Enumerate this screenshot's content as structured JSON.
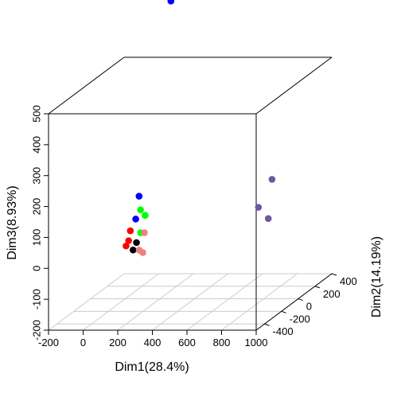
{
  "chart_data": {
    "type": "scatter3d",
    "title": "",
    "xlabel": "Dim1(28.4%)",
    "ylabel": "Dim2(14.19%)",
    "zlabel": "Dim3(8.93%)",
    "xlim": [
      -200,
      1000
    ],
    "ylim": [
      -500,
      400
    ],
    "zlim": [
      -200,
      500
    ],
    "x_ticks": [
      "-200",
      "0",
      "200",
      "400",
      "600",
      "800",
      "1000"
    ],
    "y_ticks": [
      "-400",
      "-200",
      "0",
      "200",
      "400"
    ],
    "z_ticks": [
      "-200",
      "-100",
      "0",
      "100",
      "200",
      "300",
      "400",
      "500"
    ],
    "grid": "x-y floor",
    "legend": "none",
    "groups": [
      {
        "color": "#0000ff",
        "points": [
          [
            114,
            310,
            700
          ],
          [
            100,
            -40,
            140
          ],
          [
            66,
            -10,
            60
          ]
        ]
      },
      {
        "color": "#00ff00",
        "points": [
          [
            118,
            -60,
            100
          ],
          [
            140,
            -50,
            80
          ],
          [
            128,
            -80,
            30
          ]
        ]
      },
      {
        "color": "#f08080",
        "points": [
          [
            150,
            -80,
            30
          ],
          [
            135,
            -110,
            -20
          ],
          [
            175,
            -150,
            -20
          ]
        ]
      },
      {
        "color": "#ff0000",
        "points": [
          [
            30,
            0,
            20
          ],
          [
            25,
            -10,
            -10
          ],
          [
            15,
            -20,
            -25
          ]
        ]
      },
      {
        "color": "#000000",
        "points": [
          [
            85,
            -40,
            -10
          ],
          [
            75,
            -60,
            -30
          ]
        ]
      },
      {
        "color": "#7058a0",
        "points": [
          [
            810,
            80,
            170
          ],
          [
            780,
            -20,
            100
          ],
          [
            900,
            -150,
            90
          ]
        ]
      }
    ]
  }
}
